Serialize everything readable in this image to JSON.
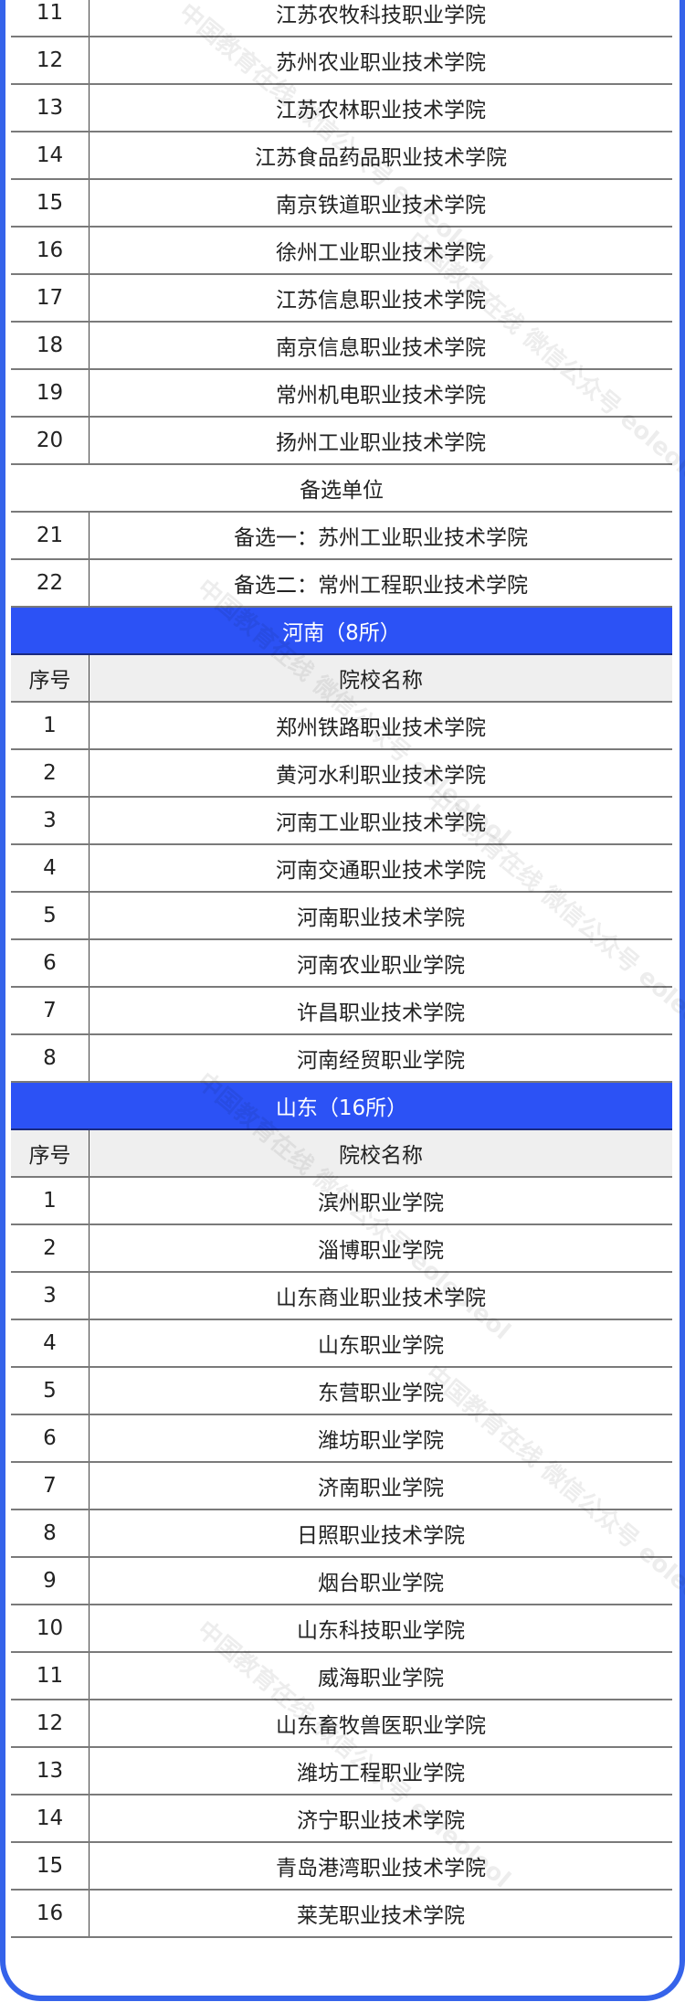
{
  "colors": {
    "frame": "#3563ea",
    "section_header": "#2c52f5",
    "column_header_bg": "#efefef"
  },
  "jiangsu_rows": [
    {
      "no": "11",
      "name": "江苏农牧科技职业学院"
    },
    {
      "no": "12",
      "name": "苏州农业职业技术学院"
    },
    {
      "no": "13",
      "name": "江苏农林职业技术学院"
    },
    {
      "no": "14",
      "name": "江苏食品药品职业技术学院"
    },
    {
      "no": "15",
      "name": "南京铁道职业技术学院"
    },
    {
      "no": "16",
      "name": "徐州工业职业技术学院"
    },
    {
      "no": "17",
      "name": "江苏信息职业技术学院"
    },
    {
      "no": "18",
      "name": "南京信息职业技术学院"
    },
    {
      "no": "19",
      "name": "常州机电职业技术学院"
    },
    {
      "no": "20",
      "name": "扬州工业职业技术学院"
    }
  ],
  "alternate_label": "备选单位",
  "alternate_rows": [
    {
      "no": "21",
      "name": "备选一：苏州工业职业技术学院"
    },
    {
      "no": "22",
      "name": "备选二：常州工程职业技术学院"
    }
  ],
  "columns": {
    "no": "序号",
    "name": "院校名称"
  },
  "henan": {
    "title": "河南（8所）",
    "rows": [
      {
        "no": "1",
        "name": "郑州铁路职业技术学院"
      },
      {
        "no": "2",
        "name": "黄河水利职业技术学院"
      },
      {
        "no": "3",
        "name": "河南工业职业技术学院"
      },
      {
        "no": "4",
        "name": "河南交通职业技术学院"
      },
      {
        "no": "5",
        "name": "河南职业技术学院"
      },
      {
        "no": "6",
        "name": "河南农业职业学院"
      },
      {
        "no": "7",
        "name": "许昌职业技术学院"
      },
      {
        "no": "8",
        "name": "河南经贸职业学院"
      }
    ]
  },
  "shandong": {
    "title": "山东（16所）",
    "rows": [
      {
        "no": "1",
        "name": "滨州职业学院"
      },
      {
        "no": "2",
        "name": "淄博职业学院"
      },
      {
        "no": "3",
        "name": "山东商业职业技术学院"
      },
      {
        "no": "4",
        "name": "山东职业学院"
      },
      {
        "no": "5",
        "name": "东营职业学院"
      },
      {
        "no": "6",
        "name": "潍坊职业学院"
      },
      {
        "no": "7",
        "name": "济南职业学院"
      },
      {
        "no": "8",
        "name": "日照职业技术学院"
      },
      {
        "no": "9",
        "name": "烟台职业学院"
      },
      {
        "no": "10",
        "name": "山东科技职业学院"
      },
      {
        "no": "11",
        "name": "威海职业学院"
      },
      {
        "no": "12",
        "name": "山东畜牧兽医职业学院"
      },
      {
        "no": "13",
        "name": "潍坊工程职业学院"
      },
      {
        "no": "14",
        "name": "济宁职业技术学院"
      },
      {
        "no": "15",
        "name": "青岛港湾职业技术学院"
      },
      {
        "no": "16",
        "name": "莱芜职业技术学院"
      }
    ]
  },
  "watermark": "中国教育在线 微信公众号 eoleoleol"
}
